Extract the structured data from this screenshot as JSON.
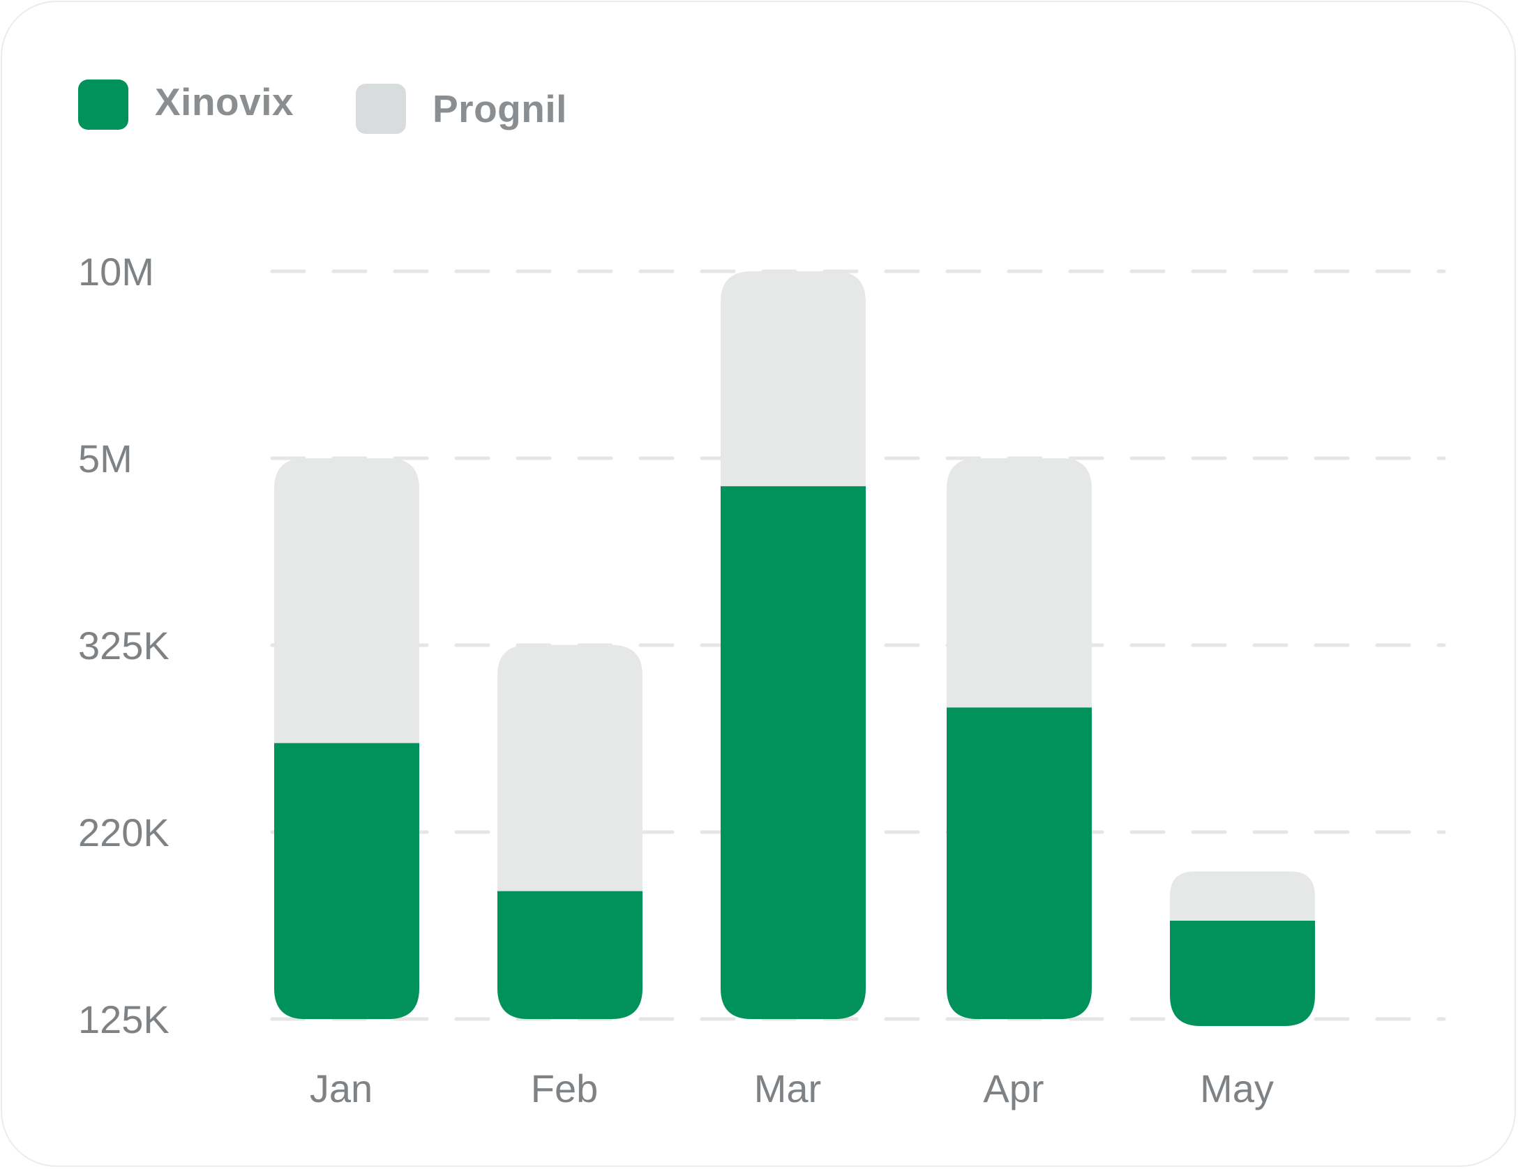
{
  "colors": {
    "xinovix": "#00925a",
    "prognil": "#e6e8e7",
    "grid": "#e6e6e6",
    "text": "#7e8285"
  },
  "chart_data": {
    "type": "bar",
    "stacked": true,
    "categories": [
      "Jan",
      "Feb",
      "Mar",
      "Apr",
      "May"
    ],
    "y_ticks": [
      "125K",
      "220K",
      "325K",
      "5M",
      "10M"
    ],
    "y_scale": "ordinal-tick (non-linear)",
    "grid": true,
    "legend_position": "top-left",
    "series": [
      {
        "name": "Xinovix",
        "color": "#00925a",
        "values": [
          270000,
          190000,
          4300000,
          290000,
          175000
        ]
      },
      {
        "name": "Prognil",
        "color": "#e6e8e7",
        "values": [
          4730000,
          140000,
          5700000,
          4710000,
          25000
        ]
      }
    ],
    "totals": [
      5000000,
      330000,
      10000000,
      5000000,
      200000
    ]
  }
}
